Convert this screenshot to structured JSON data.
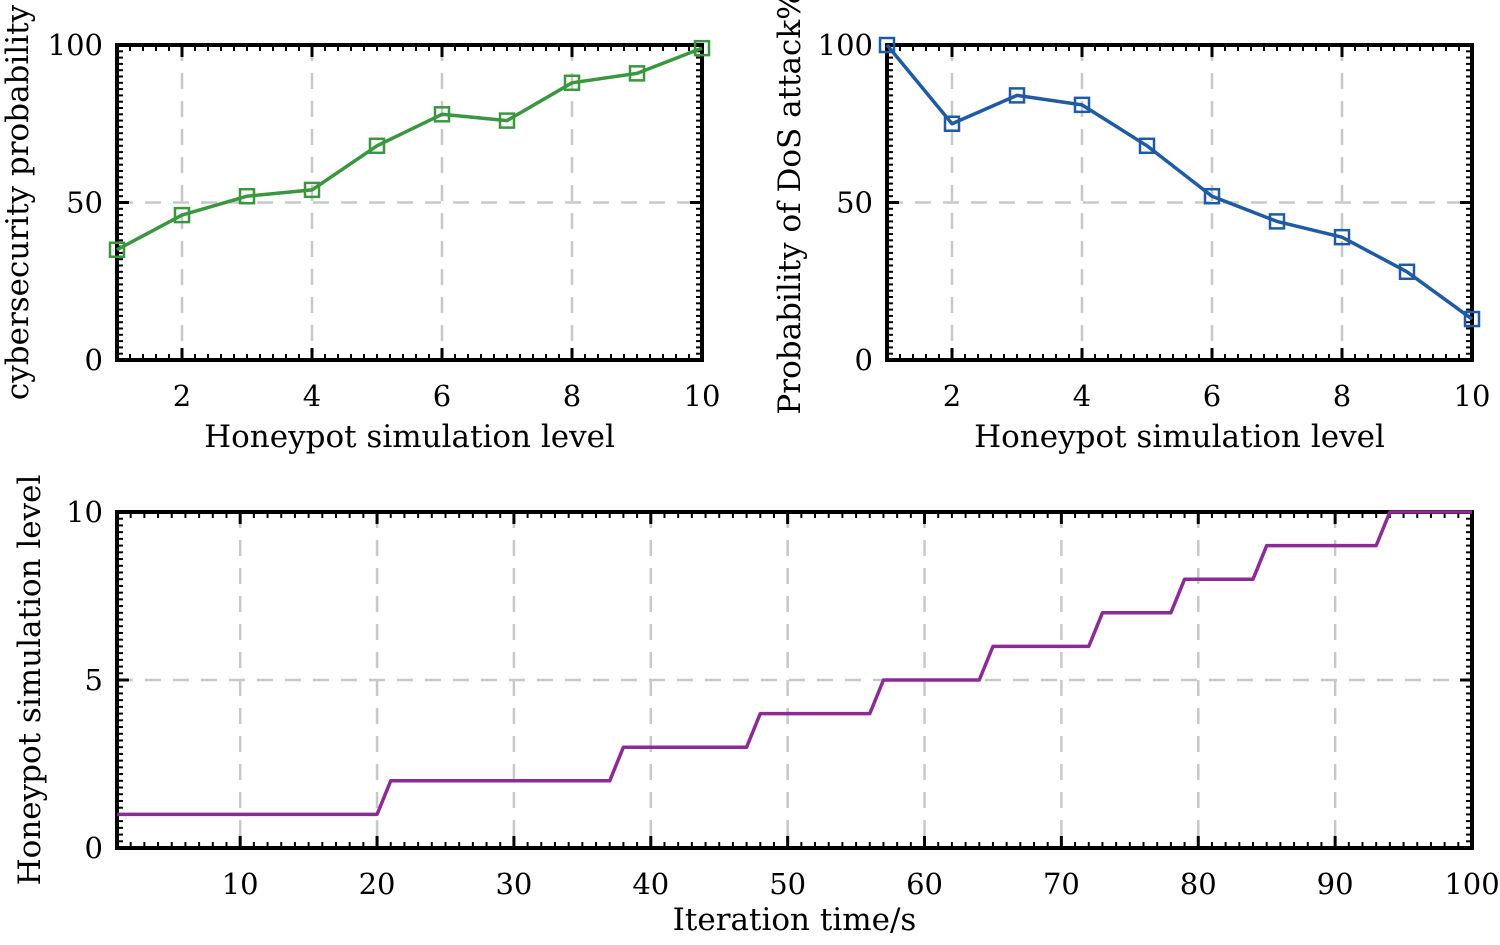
{
  "chart_data": [
    {
      "id": "top-left",
      "type": "line",
      "title": "",
      "xlabel": "Honeypot simulation level",
      "ylabel": "cybersecurity probability",
      "xlim": [
        1,
        10
      ],
      "ylim": [
        0,
        100
      ],
      "xticks": [
        2,
        4,
        6,
        8,
        10
      ],
      "yticks": [
        0,
        50,
        100
      ],
      "grid": true,
      "marker": "square",
      "color": "#3a963f",
      "series": [
        {
          "name": "cybersecurity probability",
          "x": [
            1,
            2,
            3,
            4,
            5,
            6,
            7,
            8,
            9,
            10
          ],
          "values": [
            35,
            46,
            52,
            54,
            68,
            78,
            76,
            88,
            91,
            99
          ]
        }
      ]
    },
    {
      "id": "top-right",
      "type": "line",
      "title": "",
      "xlabel": "Honeypot simulation level",
      "ylabel": "Probability of DoS attack%",
      "xlim": [
        1,
        10
      ],
      "ylim": [
        0,
        100
      ],
      "xticks": [
        2,
        4,
        6,
        8,
        10
      ],
      "yticks": [
        0,
        50,
        100
      ],
      "grid": true,
      "marker": "square",
      "color": "#1f5aa5",
      "series": [
        {
          "name": "Probability of DoS attack",
          "x": [
            1,
            2,
            3,
            4,
            5,
            6,
            7,
            8,
            9,
            10
          ],
          "values": [
            100,
            75,
            84,
            81,
            68,
            52,
            44,
            39,
            28,
            13
          ]
        }
      ]
    },
    {
      "id": "bottom",
      "type": "line",
      "title": "",
      "xlabel": "Iteration time/s",
      "ylabel": "Honeypot simulation level",
      "xlim": [
        1,
        100
      ],
      "ylim": [
        0,
        10
      ],
      "xticks": [
        10,
        20,
        30,
        40,
        50,
        60,
        70,
        80,
        90,
        100
      ],
      "yticks": [
        0,
        5,
        10
      ],
      "grid": true,
      "marker": "none",
      "color": "#8c2a96",
      "series": [
        {
          "name": "Honeypot simulation level",
          "x": [
            1,
            20,
            21,
            37,
            38,
            47,
            48,
            56,
            57,
            64,
            65,
            72,
            73,
            78,
            79,
            84,
            85,
            93,
            94,
            100
          ],
          "values": [
            1,
            1,
            2,
            2,
            3,
            3,
            4,
            4,
            5,
            5,
            6,
            6,
            7,
            7,
            8,
            8,
            9,
            9,
            10,
            10
          ]
        }
      ]
    }
  ]
}
